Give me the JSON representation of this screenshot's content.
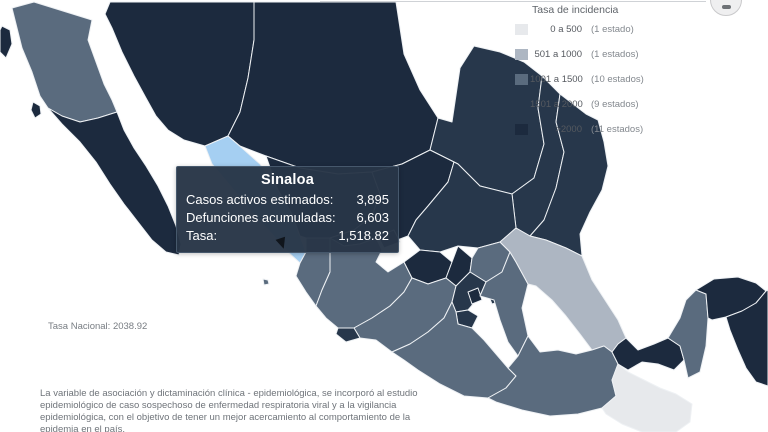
{
  "legend": {
    "title": "Tasa de incidencia",
    "items": [
      {
        "range": "0 a 500",
        "count": "(1 estado)",
        "color": "#e7e9ec"
      },
      {
        "range": "501 a 1000",
        "count": "(1 estados)",
        "color": "#adb6c2"
      },
      {
        "range": "1001 a 1500",
        "count": "(10 estados)",
        "color": "#5a6b7e"
      },
      {
        "range": "1501 a 2000",
        "count": "(9 estados)",
        "color": "#27374b"
      },
      {
        "range": ">2000",
        "count": "(11 estados)",
        "color": "#1c2a3e"
      }
    ]
  },
  "tooltip": {
    "title": "Sinaloa",
    "rows": [
      {
        "label": "Casos activos estimados:",
        "value": "3,895"
      },
      {
        "label": "Defunciones acumuladas:",
        "value": "6,603"
      },
      {
        "label": "Tasa:",
        "value": "1,518.82"
      }
    ]
  },
  "national_rate": "Tasa Nacional: 2038.92",
  "footnote": "La variable de asociación y dictaminación clínica - epidemiológica, se incorporó al estudio epidemiológico de caso sospechoso de enfermedad respiratoria viral y a la vigilancia epidemiológica, con el objetivo de tener un mejor acercamiento al comportamiento de la epidemia en el país.",
  "map": {
    "highlighted_state": "sinaloa",
    "category_colors": {
      "r0_500": "#e7e9ec",
      "r501_1000": "#adb6c2",
      "r1001_1500": "#5a6b7e",
      "r1501_2000": "#27374b",
      "gt2000": "#1c2a3e",
      "highlight": "#a5cff2"
    },
    "states": [
      {
        "name": "guadalupe-island",
        "category": "gt2000"
      },
      {
        "name": "cedros-island",
        "category": "gt2000"
      },
      {
        "name": "baja-california",
        "category": "r1001_1500"
      },
      {
        "name": "baja-california-sur",
        "category": "gt2000"
      },
      {
        "name": "sonora",
        "category": "gt2000"
      },
      {
        "name": "chihuahua",
        "category": "gt2000"
      },
      {
        "name": "coahuila",
        "category": "r1501_2000"
      },
      {
        "name": "nuevo-leon",
        "category": "r1501_2000"
      },
      {
        "name": "tamaulipas",
        "category": "r1501_2000"
      },
      {
        "name": "sinaloa",
        "category": "highlight"
      },
      {
        "name": "durango",
        "category": "gt2000"
      },
      {
        "name": "zacatecas",
        "category": "gt2000"
      },
      {
        "name": "san-luis-potosi",
        "category": "r1501_2000"
      },
      {
        "name": "nayarit",
        "category": "r1001_1500"
      },
      {
        "name": "islas-marias",
        "category": "r1001_1500"
      },
      {
        "name": "jalisco",
        "category": "r1001_1500"
      },
      {
        "name": "aguascalientes",
        "category": "r1501_2000"
      },
      {
        "name": "guanajuato",
        "category": "gt2000"
      },
      {
        "name": "queretaro",
        "category": "gt2000"
      },
      {
        "name": "hidalgo",
        "category": "r1001_1500"
      },
      {
        "name": "michoacan",
        "category": "r1001_1500"
      },
      {
        "name": "mexico-state",
        "category": "r1501_2000"
      },
      {
        "name": "cdmx",
        "category": "gt2000"
      },
      {
        "name": "morelos",
        "category": "r1501_2000"
      },
      {
        "name": "tlaxcala",
        "category": "r1501_2000"
      },
      {
        "name": "puebla",
        "category": "r1001_1500"
      },
      {
        "name": "veracruz",
        "category": "r501_1000"
      },
      {
        "name": "colima",
        "category": "r1501_2000"
      },
      {
        "name": "guerrero",
        "category": "r1001_1500"
      },
      {
        "name": "oaxaca",
        "category": "r1001_1500"
      },
      {
        "name": "chiapas",
        "category": "r0_500"
      },
      {
        "name": "tabasco",
        "category": "gt2000"
      },
      {
        "name": "campeche",
        "category": "r1001_1500"
      },
      {
        "name": "yucatan",
        "category": "gt2000"
      },
      {
        "name": "quintana-roo",
        "category": "gt2000"
      }
    ]
  }
}
